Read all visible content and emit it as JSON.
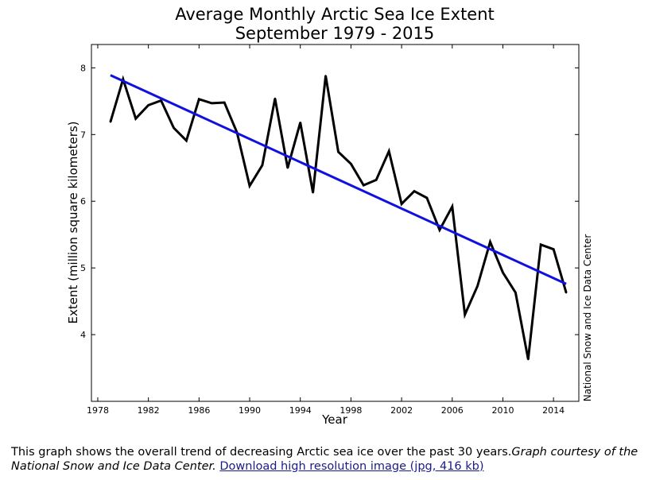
{
  "chart_data": {
    "type": "line",
    "title": "Average Monthly Arctic Sea Ice Extent",
    "subtitle": "September 1979 - 2015",
    "xlabel": "Year",
    "ylabel": "Extent (million square kilometers)",
    "xlim": [
      1977.5,
      2016
    ],
    "ylim": [
      3.0,
      8.35
    ],
    "xticks": [
      1978,
      1982,
      1986,
      1990,
      1994,
      1998,
      2002,
      2006,
      2010,
      2014
    ],
    "yticks": [
      4,
      5,
      6,
      7,
      8
    ],
    "grid": false,
    "legend": "none",
    "side_label": "National Snow and Ice Data Center",
    "series": [
      {
        "color": "#000000",
        "x": [
          1979,
          1980,
          1981,
          1982,
          1983,
          1984,
          1985,
          1986,
          1987,
          1988,
          1989,
          1990,
          1991,
          1992,
          1993,
          1994,
          1995,
          1996,
          1997,
          1998,
          1999,
          2000,
          2001,
          2002,
          2003,
          2004,
          2005,
          2006,
          2007,
          2008,
          2009,
          2010,
          2011,
          2012,
          2013,
          2014,
          2015
        ],
        "values": [
          7.19,
          7.83,
          7.24,
          7.44,
          7.51,
          7.1,
          6.91,
          7.53,
          7.47,
          7.48,
          7.03,
          6.23,
          6.54,
          7.54,
          6.5,
          7.18,
          6.13,
          7.88,
          6.74,
          6.56,
          6.24,
          6.32,
          6.75,
          5.96,
          6.15,
          6.05,
          5.57,
          5.92,
          4.3,
          4.73,
          5.39,
          4.93,
          4.63,
          3.63,
          5.35,
          5.28,
          4.63
        ]
      },
      {
        "color": "#1010e0",
        "x": [
          1979,
          2015
        ],
        "values": [
          7.89,
          4.76
        ]
      }
    ]
  },
  "caption": {
    "text": "This graph shows the overall trend of decreasing Arctic sea ice over the past 30 years.",
    "credit": "Graph courtesy of the National Snow and Ice Data Center.",
    "link": "Download high resolution image (jpg, 416 kb)"
  }
}
